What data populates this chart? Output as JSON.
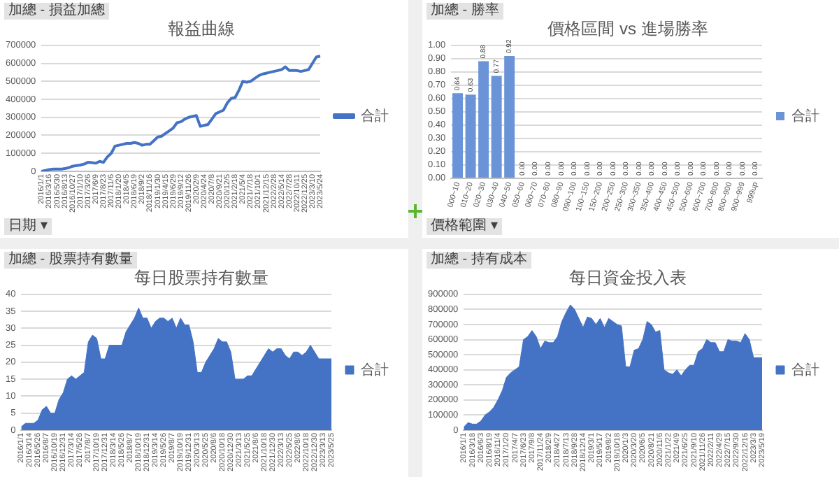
{
  "chart_data": [
    {
      "type": "line",
      "title": "報益曲線",
      "annotations": [
        "加總 - 損益加總",
        "日期 ▾"
      ],
      "categories": [
        "2016/1/1",
        null,
        "2016/3/16",
        null,
        "2016/5/30",
        null,
        "2016/8/13",
        null,
        "2016/10/27",
        null,
        "2017/1/10",
        null,
        "2017/3/26",
        null,
        "2017/6/9",
        null,
        "2017/8/23",
        null,
        "2017/11/6",
        null,
        "2018/1/20",
        null,
        "2018/4/5",
        null,
        "2018/6/19",
        null,
        "2018/9/2",
        null,
        "2018/11/16",
        null,
        "2019/1/30",
        null,
        "2019/4/15",
        null,
        "2019/6/29",
        null,
        "2019/9/12",
        null,
        "2019/11/26",
        null,
        "2020/2/9",
        null,
        "2020/4/24",
        null,
        "2020/7/8",
        null,
        "2020/9/21",
        null,
        "2020/12/5",
        null,
        "2021/2/18",
        null,
        "2021/5/4",
        null,
        "2021/7/18",
        null,
        "2021/10/1",
        null,
        "2021/12/15",
        null,
        "2022/2/28",
        null,
        "2022/5/14",
        null,
        "2022/7/28",
        null,
        "2022/10/11",
        null,
        "2022/12/25",
        null,
        "2023/3/10",
        null,
        "2023/5/24"
      ],
      "series": [
        {
          "name": "合計",
          "color": "#4472c4",
          "values": [
            0,
            5000,
            10000,
            12000,
            12000,
            12000,
            15000,
            20000,
            28000,
            32000,
            35000,
            40000,
            50000,
            48000,
            45000,
            55000,
            50000,
            80000,
            100000,
            140000,
            145000,
            150000,
            155000,
            155000,
            160000,
            155000,
            145000,
            150000,
            150000,
            170000,
            190000,
            195000,
            210000,
            225000,
            240000,
            270000,
            275000,
            290000,
            300000,
            305000,
            310000,
            250000,
            255000,
            260000,
            290000,
            320000,
            330000,
            340000,
            380000,
            405000,
            410000,
            450000,
            500000,
            495000,
            500000,
            515000,
            530000,
            540000,
            545000,
            550000,
            555000,
            560000,
            565000,
            580000,
            560000,
            560000,
            560000,
            555000,
            560000,
            565000,
            600000,
            635000,
            640000
          ]
        }
      ],
      "ylim": [
        0,
        700000
      ],
      "yticks": [
        0,
        100000,
        200000,
        300000,
        400000,
        500000,
        600000,
        700000
      ],
      "grid": "y",
      "legend": "right"
    },
    {
      "type": "bar",
      "title": "價格區間 vs 進場勝率",
      "annotations": [
        "加總 - 勝率",
        "價格範圍 ▾"
      ],
      "categories": [
        "000~10",
        "010~20",
        "020~30",
        "030~40",
        "040~50",
        "050~60",
        "060~70",
        "070~80",
        "080~90",
        "090~100",
        "100~150",
        "150~200",
        "200~250",
        "250~300",
        "300~350",
        "350~400",
        "400~450",
        "450~500",
        "500~600",
        "600~700",
        "700~800",
        "800~900",
        "900~999",
        "999up"
      ],
      "series": [
        {
          "name": "合計",
          "color": "#6b94d8",
          "values": [
            0.64,
            0.63,
            0.88,
            0.77,
            0.92,
            0,
            0,
            0,
            0,
            0,
            0,
            0,
            0,
            0,
            0,
            0,
            0,
            0,
            0,
            0,
            0,
            0,
            0,
            0
          ],
          "value_labels": [
            "0.64",
            "0.63",
            "0.88",
            "0.77",
            "0.92",
            "0.00",
            "0.00",
            "0.00",
            "0.00",
            "0.00",
            "0.00",
            "0.00",
            "0.00",
            "0.00",
            "0.00",
            "0.00",
            "0.00",
            "0.00",
            "0.00",
            "0.00",
            "0.00",
            "0.00",
            "0.00",
            "0.00"
          ]
        }
      ],
      "ylim": [
        0,
        1
      ],
      "yticks": [
        {
          "value": 0,
          "label": "0.00"
        },
        {
          "value": 0.1,
          "label": "0.10"
        },
        {
          "value": 0.2,
          "label": "0.20"
        },
        {
          "value": 0.3,
          "label": "0.30"
        },
        {
          "value": 0.4,
          "label": "0.40"
        },
        {
          "value": 0.5,
          "label": "0.50"
        },
        {
          "value": 0.6,
          "label": "0.60"
        },
        {
          "value": 0.7,
          "label": "0.70"
        },
        {
          "value": 0.8,
          "label": "0.80"
        },
        {
          "value": 0.9,
          "label": "0.90"
        },
        {
          "value": 1,
          "label": "1.00"
        }
      ],
      "grid": "y",
      "legend": "right"
    },
    {
      "type": "area",
      "title": "每日股票持有數量",
      "annotations": [
        "加總 - 股票持有數量"
      ],
      "categories": [
        "2016/1/1",
        null,
        "2016/3/14",
        null,
        "2016/5/26",
        null,
        "2016/8/7",
        null,
        "2016/10/19",
        null,
        "2016/12/31",
        null,
        "2017/3/14",
        null,
        "2017/5/26",
        null,
        "2017/8/7",
        null,
        "2017/10/19",
        null,
        "2017/12/31",
        null,
        "2018/3/14",
        null,
        "2018/5/26",
        null,
        "2018/8/7",
        null,
        "2018/10/19",
        null,
        "2018/12/31",
        null,
        "2019/3/14",
        null,
        "2019/5/26",
        null,
        "2019/8/7",
        null,
        "2019/10/19",
        null,
        "2019/12/31",
        null,
        "2020/3/13",
        null,
        "2020/5/25",
        null,
        "2020/8/6",
        null,
        "2020/10/18",
        null,
        "2020/12/30",
        null,
        "2021/3/13",
        null,
        "2021/5/25",
        null,
        "2021/8/6",
        null,
        "2021/10/18",
        null,
        "2021/12/30",
        null,
        "2022/3/13",
        null,
        "2022/5/25",
        null,
        "2022/8/6",
        null,
        "2022/10/18",
        null,
        "2022/12/30",
        null,
        "2023/3/13",
        null,
        "2023/5/25"
      ],
      "series": [
        {
          "name": "合計",
          "color": "#4472c4",
          "values": [
            1,
            2,
            2,
            2,
            3,
            6,
            7,
            5,
            5,
            9,
            11,
            15,
            16,
            15,
            16,
            17,
            26,
            28,
            27,
            21,
            21,
            25,
            25,
            25,
            25,
            29,
            31,
            33,
            36,
            33,
            33,
            30,
            32,
            33,
            33,
            32,
            33,
            30,
            33,
            31,
            31,
            26,
            17,
            17,
            20,
            22,
            24,
            27,
            26,
            26,
            23,
            15,
            15,
            15,
            16,
            16,
            18,
            20,
            22,
            24,
            23,
            24,
            24,
            22,
            21,
            23,
            23,
            22,
            23,
            25,
            23,
            21,
            21,
            21,
            21
          ]
        }
      ],
      "ylim": [
        0,
        40
      ],
      "yticks": [
        0,
        5,
        10,
        15,
        20,
        25,
        30,
        35,
        40
      ],
      "grid": "y",
      "legend": "right"
    },
    {
      "type": "area",
      "title": "每日資金投入表",
      "annotations": [
        "加總 - 持有成本"
      ],
      "categories": [
        "2016/1/1",
        null,
        "2016/3/18",
        null,
        "2016/6/3",
        null,
        "2016/8/19",
        null,
        "2016/11/4",
        null,
        "2017/1/20",
        null,
        "2017/4/7",
        null,
        "2017/6/23",
        null,
        "2017/9/8",
        null,
        "2017/11/24",
        null,
        "2018/2/9",
        null,
        "2018/4/27",
        null,
        "2018/7/13",
        null,
        "2018/9/28",
        null,
        "2018/12/14",
        null,
        "2019/3/1",
        null,
        "2019/5/17",
        null,
        "2019/8/2",
        null,
        "2019/10/18",
        null,
        "2020/1/3",
        null,
        "2020/3/20",
        null,
        "2020/6/5",
        null,
        "2020/8/21",
        null,
        "2020/11/6",
        null,
        "2021/1/22",
        null,
        "2021/4/9",
        null,
        "2021/6/25",
        null,
        "2021/9/10",
        null,
        "2021/11/26",
        null,
        "2022/2/11",
        null,
        "2022/4/29",
        null,
        "2022/7/15",
        null,
        "2022/9/30",
        null,
        "2022/12/16",
        null,
        "2023/3/3",
        null,
        "2023/5/19"
      ],
      "series": [
        {
          "name": "合計",
          "color": "#4472c4",
          "values": [
            20000,
            50000,
            40000,
            40000,
            60000,
            100000,
            120000,
            150000,
            200000,
            260000,
            350000,
            380000,
            400000,
            420000,
            600000,
            620000,
            660000,
            620000,
            540000,
            590000,
            580000,
            580000,
            620000,
            720000,
            780000,
            830000,
            800000,
            740000,
            680000,
            750000,
            740000,
            700000,
            740000,
            680000,
            740000,
            720000,
            700000,
            690000,
            420000,
            420000,
            530000,
            540000,
            600000,
            720000,
            700000,
            650000,
            660000,
            400000,
            380000,
            370000,
            400000,
            360000,
            400000,
            430000,
            430000,
            520000,
            540000,
            600000,
            580000,
            580000,
            520000,
            520000,
            600000,
            590000,
            590000,
            580000,
            640000,
            600000,
            480000,
            480000,
            480000
          ]
        }
      ],
      "ylim": [
        0,
        900000
      ],
      "yticks": [
        0,
        100000,
        200000,
        300000,
        400000,
        500000,
        600000,
        700000,
        800000,
        900000
      ],
      "grid": "y",
      "legend": "right"
    }
  ]
}
